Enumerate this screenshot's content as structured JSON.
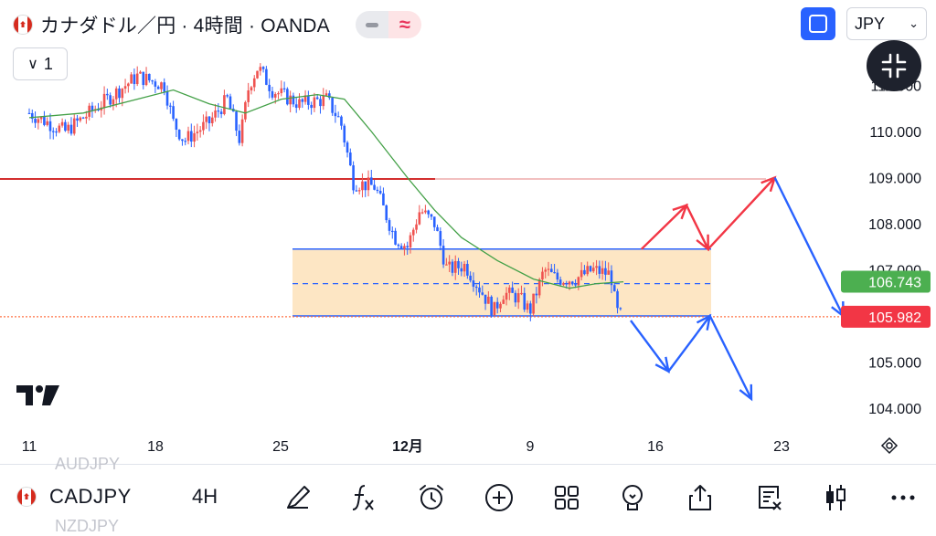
{
  "header": {
    "title": "カナダドル／円 · 4時間 · OANDA",
    "pill_alt_glyph": "≈",
    "collapse_label": "1",
    "currency": "JPY"
  },
  "price_tags": [
    {
      "value": "106.743",
      "color": "#4caf50"
    },
    {
      "value": "105.982",
      "color": "#f23645"
    }
  ],
  "bottom": {
    "symbol": "CADJPY",
    "timeframe": "4H",
    "ghost_above": "AUDJPY",
    "ghost_below": "NZDJPY",
    "tools": [
      "pen-icon",
      "fx-icon",
      "alarm-icon",
      "plus-circle-icon",
      "grid-icon",
      "lightbulb-icon",
      "share-icon",
      "list-x-icon",
      "candles-icon",
      "more-icon"
    ]
  },
  "colors": {
    "up": "#ef5350",
    "down": "#2962ff",
    "ma": "#43a047",
    "resistance": "#d32f2f",
    "support": "#ff7043",
    "zone": "#fde6c4",
    "arrow_red": "#f23645",
    "arrow_blue": "#2962ff"
  },
  "chart_data": {
    "type": "candlestick",
    "symbol": "CADJPY",
    "interval": "4H",
    "x_ticks": [
      "11",
      "18",
      "25",
      "12月",
      "9",
      "16",
      "23"
    ],
    "y_ticks": [
      "104.000",
      "105.000",
      "106.000",
      "107.000",
      "108.000",
      "109.000",
      "110.000",
      "111.000"
    ],
    "ylim": [
      103.0,
      112.0
    ],
    "last_price": 105.982,
    "ma_value": 106.743,
    "levels": [
      {
        "name": "resistance",
        "price": 108.97
      },
      {
        "name": "range-top",
        "price": 107.45
      },
      {
        "name": "range-mid",
        "price": 106.7
      },
      {
        "name": "range-bottom",
        "price": 106.0
      },
      {
        "name": "last-price-line",
        "price": 105.982
      }
    ],
    "anchors": [
      {
        "d": 0,
        "p": 110.4
      },
      {
        "d": 2,
        "p": 110.0
      },
      {
        "d": 4,
        "p": 110.6
      },
      {
        "d": 6,
        "p": 111.2
      },
      {
        "d": 7.5,
        "p": 111.0
      },
      {
        "d": 8,
        "p": 110.2
      },
      {
        "d": 8.6,
        "p": 109.8
      },
      {
        "d": 10,
        "p": 110.2
      },
      {
        "d": 11,
        "p": 110.7
      },
      {
        "d": 11.7,
        "p": 109.8
      },
      {
        "d": 12.2,
        "p": 111.0
      },
      {
        "d": 12.7,
        "p": 111.4
      },
      {
        "d": 13.5,
        "p": 110.9
      },
      {
        "d": 15,
        "p": 110.6
      },
      {
        "d": 16.5,
        "p": 110.7
      },
      {
        "d": 17.3,
        "p": 110.2
      },
      {
        "d": 18,
        "p": 108.9
      },
      {
        "d": 19.2,
        "p": 108.8
      },
      {
        "d": 20.3,
        "p": 107.7
      },
      {
        "d": 21,
        "p": 107.5
      },
      {
        "d": 21.7,
        "p": 108.3
      },
      {
        "d": 22.5,
        "p": 108.0
      },
      {
        "d": 23.2,
        "p": 107.0
      },
      {
        "d": 24.2,
        "p": 107.1
      },
      {
        "d": 25,
        "p": 106.6
      },
      {
        "d": 25.8,
        "p": 106.1
      },
      {
        "d": 26.3,
        "p": 106.5
      },
      {
        "d": 27.2,
        "p": 106.4
      },
      {
        "d": 27.8,
        "p": 106.1
      },
      {
        "d": 28.6,
        "p": 107.0
      },
      {
        "d": 29.3,
        "p": 106.8
      },
      {
        "d": 30.3,
        "p": 106.8
      },
      {
        "d": 31.3,
        "p": 107.0
      },
      {
        "d": 32.3,
        "p": 106.9
      },
      {
        "d": 32.6,
        "p": 106.1
      },
      {
        "d": 32.9,
        "p": 105.98
      }
    ],
    "ma_points": [
      {
        "d": 0,
        "p": 110.3
      },
      {
        "d": 3,
        "p": 110.4
      },
      {
        "d": 6,
        "p": 110.7
      },
      {
        "d": 8,
        "p": 110.9
      },
      {
        "d": 10,
        "p": 110.6
      },
      {
        "d": 12,
        "p": 110.4
      },
      {
        "d": 14,
        "p": 110.7
      },
      {
        "d": 16,
        "p": 110.8
      },
      {
        "d": 17.5,
        "p": 110.7
      },
      {
        "d": 19,
        "p": 110.0
      },
      {
        "d": 21,
        "p": 109.0
      },
      {
        "d": 22.5,
        "p": 108.3
      },
      {
        "d": 24,
        "p": 107.7
      },
      {
        "d": 26,
        "p": 107.2
      },
      {
        "d": 28,
        "p": 106.8
      },
      {
        "d": 30,
        "p": 106.6
      },
      {
        "d": 31.5,
        "p": 106.7
      },
      {
        "d": 33,
        "p": 106.74
      }
    ],
    "projections": {
      "red": [
        {
          "d": 34,
          "p": 107.45
        },
        {
          "d": 36.5,
          "p": 108.4
        },
        {
          "d": 37.7,
          "p": 107.45
        },
        {
          "d": 41.4,
          "p": 109.0
        }
      ],
      "red_extra": [
        {
          "d": 41.4,
          "p": 109.0
        },
        {
          "d": 45.2,
          "p": 106.0
        }
      ],
      "blue": [
        {
          "d": 33.4,
          "p": 105.9
        },
        {
          "d": 35.5,
          "p": 104.8
        },
        {
          "d": 37.8,
          "p": 106.0
        },
        {
          "d": 40.1,
          "p": 104.2
        }
      ]
    }
  }
}
